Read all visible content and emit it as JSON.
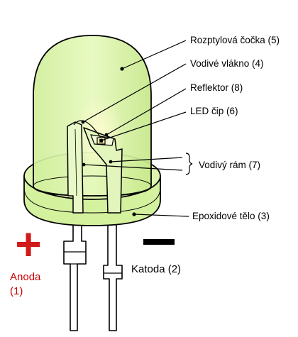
{
  "labels": {
    "lens": "Rozptylová čočka (5)",
    "wire": "Vodivé vlákno (4)",
    "reflector": "Reflektor (8)",
    "chip": "LED čip (6)",
    "frame": "Vodivý rám (7)",
    "body": "Epoxidové tělo (3)",
    "anode_line1": "Anoda",
    "anode_line2": "(1)",
    "cathode": "Katoda (2)"
  },
  "symbols": {
    "plus": "+",
    "minus": "−"
  },
  "colors": {
    "epoxy_fill": "#ddf5a8",
    "epoxy_shade": "#c5e98a",
    "outline": "#000000",
    "anode_red": "#cc0000",
    "plus_red": "#d11a1a",
    "chip_glow": "#fff2a0"
  }
}
